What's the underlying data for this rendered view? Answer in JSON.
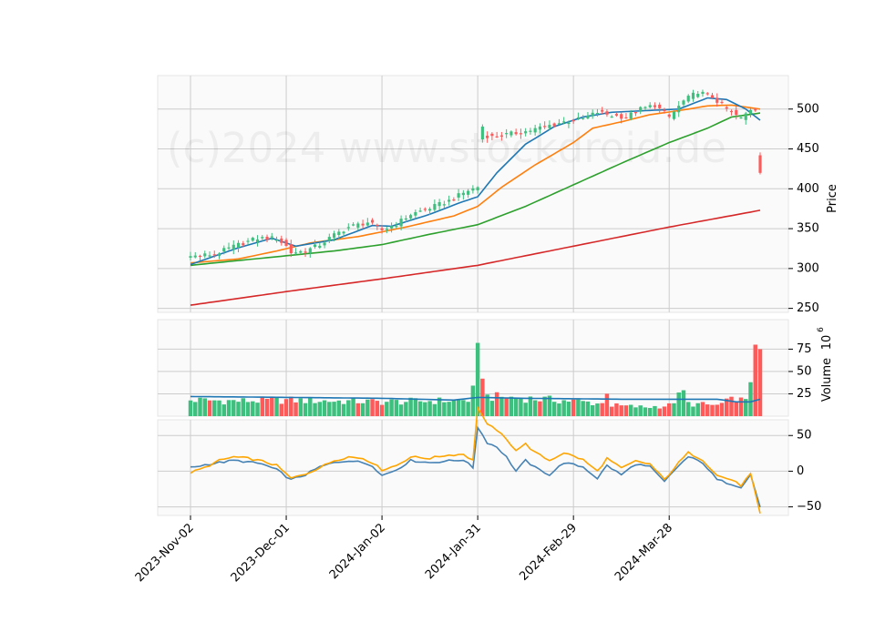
{
  "watermark": "(c)2024 www.stockdroid.de",
  "colors": {
    "up": "#3dbf7e",
    "down": "#fe5a5a",
    "ma_blue": "#1f77b4",
    "ma_orange": "#ff7f0e",
    "ma_green": "#2ca02c",
    "ma_red": "#d62728",
    "osc_blue": "#4682b4",
    "osc_orange": "#ffa500",
    "grid": "#cccccc",
    "panel_bg": "#fafafa"
  },
  "chart_data": [
    {
      "type": "candlestick",
      "panel": "price",
      "ylabel": "Price",
      "ylim": [
        245,
        542
      ],
      "yticks": [
        250,
        300,
        350,
        400,
        450,
        500
      ],
      "x_ticks": [
        {
          "index": 0,
          "label": "2023-Nov-02"
        },
        {
          "index": 20,
          "label": "2023-Dec-01"
        },
        {
          "index": 40,
          "label": "2024-Jan-02"
        },
        {
          "index": 60,
          "label": "2024-Jan-31"
        },
        {
          "index": 80,
          "label": "2024-Feb-29"
        },
        {
          "index": 100,
          "label": "2024-Mar-28"
        }
      ],
      "n_bars": 120,
      "anchors": [
        [
          0,
          315
        ],
        [
          5,
          318
        ],
        [
          10,
          330
        ],
        [
          14,
          338
        ],
        [
          18,
          338
        ],
        [
          20,
          328
        ],
        [
          21,
          320
        ],
        [
          24,
          322
        ],
        [
          27,
          330
        ],
        [
          30,
          342
        ],
        [
          33,
          352
        ],
        [
          37,
          358
        ],
        [
          40,
          348
        ],
        [
          43,
          356
        ],
        [
          46,
          368
        ],
        [
          50,
          376
        ],
        [
          54,
          385
        ],
        [
          58,
          398
        ],
        [
          60,
          402
        ],
        [
          61,
          468
        ],
        [
          63,
          465
        ],
        [
          66,
          468
        ],
        [
          70,
          472
        ],
        [
          74,
          478
        ],
        [
          78,
          484
        ],
        [
          82,
          488
        ],
        [
          85,
          496
        ],
        [
          88,
          492
        ],
        [
          91,
          490
        ],
        [
          94,
          500
        ],
        [
          97,
          505
        ],
        [
          100,
          490
        ],
        [
          103,
          510
        ],
        [
          106,
          522
        ],
        [
          109,
          515
        ],
        [
          112,
          500
        ],
        [
          115,
          488
        ],
        [
          117,
          500
        ],
        [
          118,
          500
        ],
        [
          119,
          430
        ]
      ],
      "ma_20_anchors": [
        [
          0,
          305
        ],
        [
          10,
          326
        ],
        [
          17,
          338
        ],
        [
          22,
          328
        ],
        [
          30,
          336
        ],
        [
          38,
          354
        ],
        [
          42,
          353
        ],
        [
          50,
          368
        ],
        [
          56,
          382
        ],
        [
          60,
          390
        ],
        [
          64,
          420
        ],
        [
          70,
          456
        ],
        [
          76,
          478
        ],
        [
          82,
          490
        ],
        [
          88,
          496
        ],
        [
          95,
          498
        ],
        [
          102,
          500
        ],
        [
          108,
          514
        ],
        [
          112,
          512
        ],
        [
          116,
          500
        ],
        [
          119,
          486
        ]
      ],
      "ma_50_anchors": [
        [
          0,
          307
        ],
        [
          10,
          312
        ],
        [
          18,
          322
        ],
        [
          25,
          332
        ],
        [
          35,
          340
        ],
        [
          45,
          352
        ],
        [
          55,
          366
        ],
        [
          60,
          378
        ],
        [
          65,
          402
        ],
        [
          72,
          430
        ],
        [
          80,
          458
        ],
        [
          84,
          476
        ],
        [
          90,
          484
        ],
        [
          96,
          493
        ],
        [
          102,
          498
        ],
        [
          108,
          504
        ],
        [
          113,
          505
        ],
        [
          119,
          500
        ]
      ],
      "ma_100_anchors": [
        [
          0,
          304
        ],
        [
          10,
          310
        ],
        [
          20,
          316
        ],
        [
          30,
          322
        ],
        [
          40,
          330
        ],
        [
          50,
          343
        ],
        [
          60,
          355
        ],
        [
          70,
          378
        ],
        [
          80,
          405
        ],
        [
          90,
          432
        ],
        [
          100,
          458
        ],
        [
          108,
          476
        ],
        [
          113,
          490
        ],
        [
          119,
          495
        ]
      ],
      "ma_200_anchors": [
        [
          0,
          254
        ],
        [
          20,
          271
        ],
        [
          40,
          287
        ],
        [
          60,
          304
        ],
        [
          80,
          328
        ],
        [
          100,
          352
        ],
        [
          119,
          373
        ]
      ]
    },
    {
      "type": "bar",
      "panel": "volume",
      "ylabel": "Volume",
      "ylabel_exponent": "6",
      "ylim": [
        0,
        108
      ],
      "yticks": [
        25,
        50,
        75
      ],
      "base_anchors": [
        [
          0,
          18
        ],
        [
          10,
          17
        ],
        [
          20,
          18
        ],
        [
          30,
          17
        ],
        [
          40,
          16
        ],
        [
          50,
          17
        ],
        [
          58,
          18
        ],
        [
          59,
          28
        ],
        [
          60,
          80
        ],
        [
          61,
          42
        ],
        [
          62,
          22
        ],
        [
          70,
          20
        ],
        [
          80,
          17
        ],
        [
          86,
          14
        ],
        [
          87,
          30
        ],
        [
          88,
          12
        ],
        [
          95,
          10
        ],
        [
          100,
          12
        ],
        [
          103,
          27
        ],
        [
          104,
          14
        ],
        [
          110,
          12
        ],
        [
          114,
          20
        ],
        [
          116,
          16
        ],
        [
          117,
          38
        ],
        [
          118,
          80
        ],
        [
          119,
          60
        ]
      ],
      "avg_anchors": [
        [
          0,
          22
        ],
        [
          20,
          21
        ],
        [
          40,
          20
        ],
        [
          55,
          18
        ],
        [
          60,
          21
        ],
        [
          70,
          20
        ],
        [
          90,
          19
        ],
        [
          110,
          19
        ],
        [
          114,
          16
        ],
        [
          117,
          16
        ],
        [
          119,
          19
        ]
      ]
    },
    {
      "type": "line",
      "panel": "oscillator",
      "ylim": [
        -62,
        72
      ],
      "yticks": [
        -50,
        0,
        50
      ],
      "series": [
        {
          "color_key": "osc_blue",
          "anchors": [
            [
              0,
              5
            ],
            [
              3,
              9
            ],
            [
              6,
              12
            ],
            [
              9,
              15
            ],
            [
              12,
              13
            ],
            [
              15,
              10
            ],
            [
              18,
              2
            ],
            [
              21,
              -12
            ],
            [
              24,
              -5
            ],
            [
              27,
              6
            ],
            [
              30,
              12
            ],
            [
              33,
              15
            ],
            [
              36,
              12
            ],
            [
              38,
              8
            ],
            [
              40,
              -6
            ],
            [
              43,
              2
            ],
            [
              46,
              15
            ],
            [
              50,
              12
            ],
            [
              53,
              14
            ],
            [
              57,
              16
            ],
            [
              59,
              5
            ],
            [
              60,
              62
            ],
            [
              62,
              40
            ],
            [
              64,
              34
            ],
            [
              66,
              20
            ],
            [
              68,
              0
            ],
            [
              70,
              15
            ],
            [
              72,
              5
            ],
            [
              75,
              -5
            ],
            [
              78,
              12
            ],
            [
              82,
              6
            ],
            [
              85,
              -10
            ],
            [
              87,
              8
            ],
            [
              90,
              -5
            ],
            [
              93,
              10
            ],
            [
              96,
              6
            ],
            [
              99,
              -15
            ],
            [
              102,
              8
            ],
            [
              104,
              20
            ],
            [
              107,
              12
            ],
            [
              110,
              -12
            ],
            [
              113,
              -18
            ],
            [
              115,
              -22
            ],
            [
              117,
              -5
            ],
            [
              119,
              -50
            ]
          ]
        },
        {
          "color_key": "osc_orange",
          "anchors": [
            [
              0,
              -2
            ],
            [
              3,
              5
            ],
            [
              6,
              15
            ],
            [
              9,
              20
            ],
            [
              12,
              18
            ],
            [
              15,
              14
            ],
            [
              18,
              8
            ],
            [
              21,
              -10
            ],
            [
              24,
              -4
            ],
            [
              27,
              5
            ],
            [
              30,
              15
            ],
            [
              33,
              20
            ],
            [
              36,
              18
            ],
            [
              38,
              12
            ],
            [
              40,
              2
            ],
            [
              43,
              8
            ],
            [
              46,
              20
            ],
            [
              50,
              18
            ],
            [
              53,
              22
            ],
            [
              57,
              24
            ],
            [
              59,
              15
            ],
            [
              60,
              90
            ],
            [
              62,
              65
            ],
            [
              64,
              58
            ],
            [
              66,
              44
            ],
            [
              68,
              30
            ],
            [
              70,
              38
            ],
            [
              72,
              26
            ],
            [
              75,
              15
            ],
            [
              78,
              26
            ],
            [
              82,
              16
            ],
            [
              85,
              0
            ],
            [
              87,
              18
            ],
            [
              90,
              4
            ],
            [
              93,
              14
            ],
            [
              96,
              10
            ],
            [
              99,
              -12
            ],
            [
              102,
              12
            ],
            [
              104,
              26
            ],
            [
              107,
              16
            ],
            [
              110,
              -6
            ],
            [
              113,
              -12
            ],
            [
              115,
              -20
            ],
            [
              117,
              -4
            ],
            [
              119,
              -60
            ]
          ]
        }
      ]
    }
  ]
}
